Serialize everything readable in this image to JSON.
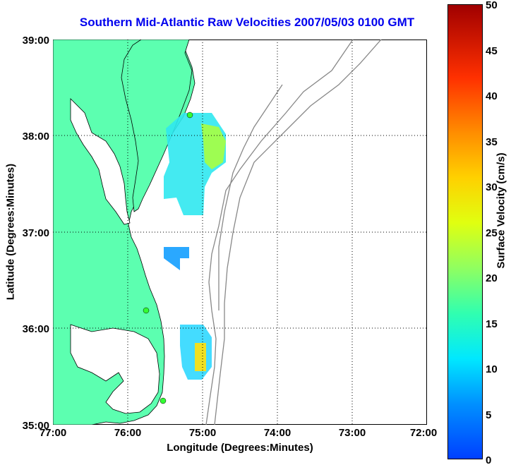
{
  "title": "Southern Mid-Atlantic Raw Velocities 2007/05/03 0100 GMT",
  "map": {
    "x_axis_label": "Longitude (Degrees:Minutes)",
    "y_axis_label": "Latitude (Degrees:Minutes)",
    "x_ticks": [
      "77:00",
      "76:00",
      "75:00",
      "74:00",
      "73:00",
      "72:00"
    ],
    "y_ticks": [
      "39:00",
      "38:00",
      "37:00",
      "36:00",
      "35:00"
    ],
    "x_range_deg_west": [
      77,
      72
    ],
    "y_range_deg_north": [
      35,
      39
    ],
    "land_color": "#5cffb0",
    "coast_color": "#000000",
    "bathymetry_color": "#888888",
    "grid": "dotted",
    "radar_sites_color": "#33ff33"
  },
  "colorbar": {
    "label": "Surface Velocity (cm/s)",
    "ticks": [
      "0",
      "5",
      "10",
      "15",
      "20",
      "25",
      "30",
      "35",
      "40",
      "45",
      "50"
    ],
    "min": 0,
    "max": 50
  }
}
